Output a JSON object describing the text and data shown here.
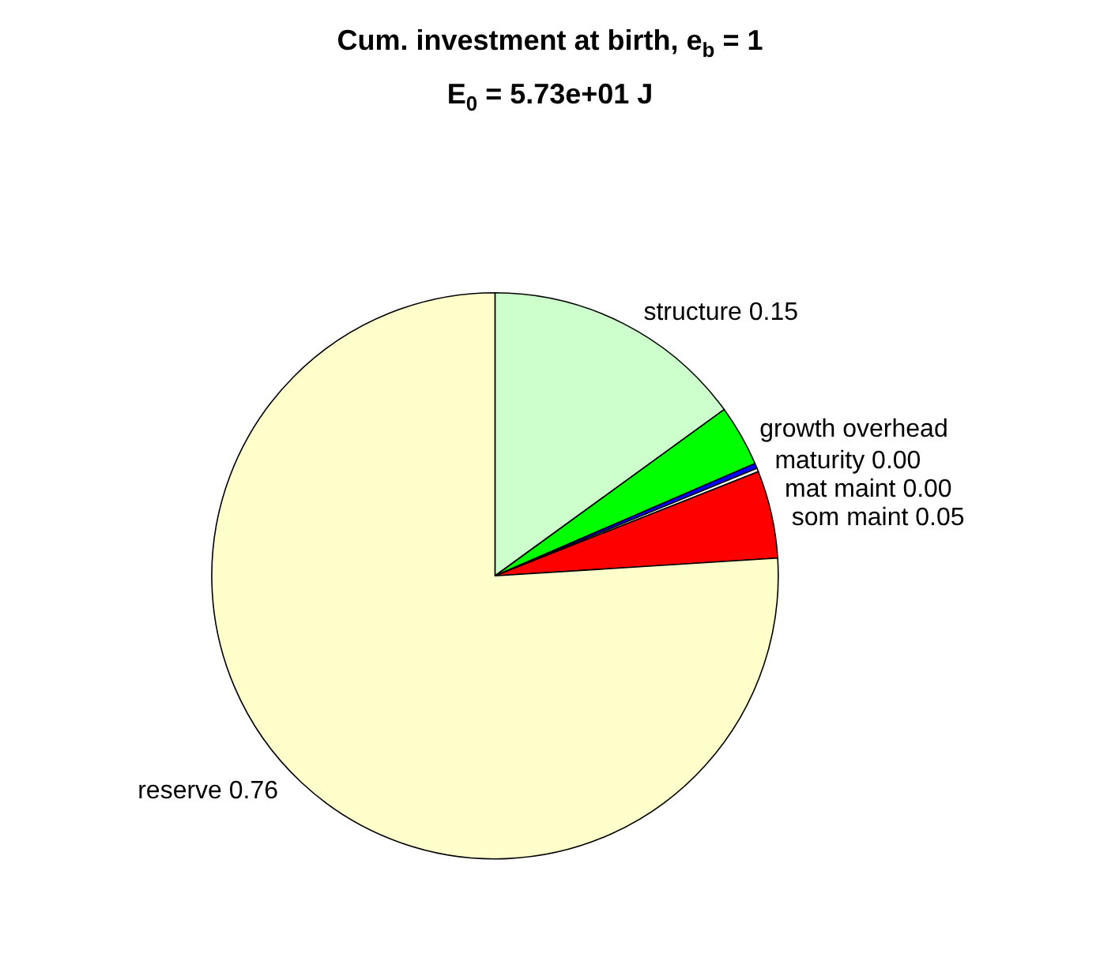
{
  "chart_data": {
    "type": "pie",
    "title": "Cum. investment at birth, e$_{b}$ = 1",
    "subtitle": "E$_{0}$ = 5.73e+01 J",
    "categories": [
      "structure",
      "growth overhead",
      "maturity",
      "mat maint",
      "som maint",
      "reserve"
    ],
    "values": [
      0.15,
      0.035,
      0.003,
      0.002,
      0.05,
      0.76
    ],
    "value_labels": [
      "0.15",
      null,
      "0.00",
      "0.00",
      "0.05",
      "0.76"
    ],
    "colors": [
      "#ccffcc",
      "#00ff00",
      "#0000ff",
      "#ffffff",
      "#ff0000",
      "#ffffcc"
    ],
    "legend": false
  }
}
